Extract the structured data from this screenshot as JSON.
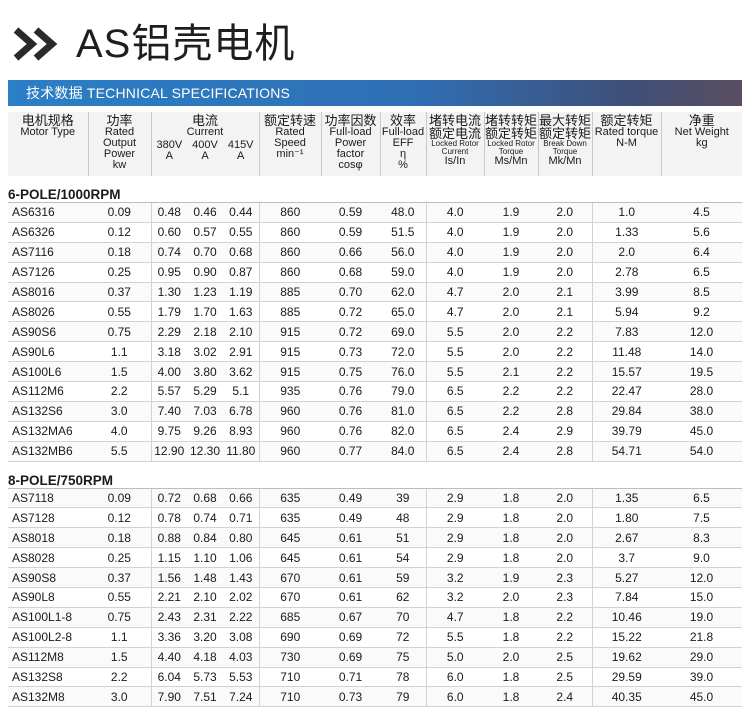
{
  "header": {
    "title": "AS铝壳电机",
    "banner": "技术数据 TECHNICAL SPECIFICATIONS"
  },
  "columns": {
    "model": {
      "cn": "电机规格",
      "en": "Motor Type"
    },
    "output": {
      "cn": "功率",
      "en": "Rated Output Power",
      "unit": "kw"
    },
    "current": {
      "cn": "电流",
      "en": "Current",
      "v380": "380V",
      "v400": "400V",
      "v415": "415V",
      "unit": "A"
    },
    "speed": {
      "cn": "额定转速",
      "en": "Rated Speed",
      "unit": "min⁻¹"
    },
    "pf": {
      "cn": "功率因数",
      "en": "Full-load Power factor",
      "unit": "cosφ"
    },
    "eff": {
      "cn": "效率",
      "en": "Full-load EFF",
      "sym": "η",
      "unit": "%"
    },
    "lcurrent": {
      "cn": "堵转电流 额定电流",
      "en": "Locked Rotor Current",
      "unit": "Is/In"
    },
    "ltorque": {
      "cn": "堵转转矩 额定转矩",
      "en": "Locked Rotor Torque",
      "unit": "Ms/Mn"
    },
    "btorque": {
      "cn": "最大转矩 额定转矩",
      "en": "Break Down Torque",
      "unit": "Mk/Mn"
    },
    "rtorque": {
      "cn": "额定转矩",
      "en": "Rated torque",
      "unit": "N-M"
    },
    "weight": {
      "cn": "净重",
      "en": "Net Weight",
      "unit": "kg"
    }
  },
  "sections": [
    {
      "title": "6-POLE/1000RPM",
      "rows": [
        [
          "AS6316",
          "0.09",
          "0.48",
          "0.46",
          "0.44",
          "860",
          "0.59",
          "48.0",
          "4.0",
          "1.9",
          "2.0",
          "1.0",
          "4.5"
        ],
        [
          "AS6326",
          "0.12",
          "0.60",
          "0.57",
          "0.55",
          "860",
          "0.59",
          "51.5",
          "4.0",
          "1.9",
          "2.0",
          "1.33",
          "5.6"
        ],
        [
          "AS7116",
          "0.18",
          "0.74",
          "0.70",
          "0.68",
          "860",
          "0.66",
          "56.0",
          "4.0",
          "1.9",
          "2.0",
          "2.0",
          "6.4"
        ],
        [
          "AS7126",
          "0.25",
          "0.95",
          "0.90",
          "0.87",
          "860",
          "0.68",
          "59.0",
          "4.0",
          "1.9",
          "2.0",
          "2.78",
          "6.5"
        ],
        [
          "AS8016",
          "0.37",
          "1.30",
          "1.23",
          "1.19",
          "885",
          "0.70",
          "62.0",
          "4.7",
          "2.0",
          "2.1",
          "3.99",
          "8.5"
        ],
        [
          "AS8026",
          "0.55",
          "1.79",
          "1.70",
          "1.63",
          "885",
          "0.72",
          "65.0",
          "4.7",
          "2.0",
          "2.1",
          "5.94",
          "9.2"
        ],
        [
          "AS90S6",
          "0.75",
          "2.29",
          "2.18",
          "2.10",
          "915",
          "0.72",
          "69.0",
          "5.5",
          "2.0",
          "2.2",
          "7.83",
          "12.0"
        ],
        [
          "AS90L6",
          "1.1",
          "3.18",
          "3.02",
          "2.91",
          "915",
          "0.73",
          "72.0",
          "5.5",
          "2.0",
          "2.2",
          "11.48",
          "14.0"
        ],
        [
          "AS100L6",
          "1.5",
          "4.00",
          "3.80",
          "3.62",
          "915",
          "0.75",
          "76.0",
          "5.5",
          "2.1",
          "2.2",
          "15.57",
          "19.5"
        ],
        [
          "AS112M6",
          "2.2",
          "5.57",
          "5.29",
          "5.1",
          "935",
          "0.76",
          "79.0",
          "6.5",
          "2.2",
          "2.2",
          "22.47",
          "28.0"
        ],
        [
          "AS132S6",
          "3.0",
          "7.40",
          "7.03",
          "6.78",
          "960",
          "0.76",
          "81.0",
          "6.5",
          "2.2",
          "2.8",
          "29.84",
          "38.0"
        ],
        [
          "AS132MA6",
          "4.0",
          "9.75",
          "9.26",
          "8.93",
          "960",
          "0.76",
          "82.0",
          "6.5",
          "2.4",
          "2.9",
          "39.79",
          "45.0"
        ],
        [
          "AS132MB6",
          "5.5",
          "12.90",
          "12.30",
          "11.80",
          "960",
          "0.77",
          "84.0",
          "6.5",
          "2.4",
          "2.8",
          "54.71",
          "54.0"
        ]
      ]
    },
    {
      "title": "8-POLE/750RPM",
      "rows": [
        [
          "AS7118",
          "0.09",
          "0.72",
          "0.68",
          "0.66",
          "635",
          "0.49",
          "39",
          "2.9",
          "1.8",
          "2.0",
          "1.35",
          "6.5"
        ],
        [
          "AS7128",
          "0.12",
          "0.78",
          "0.74",
          "0.71",
          "635",
          "0.49",
          "48",
          "2.9",
          "1.8",
          "2.0",
          "1.80",
          "7.5"
        ],
        [
          "AS8018",
          "0.18",
          "0.88",
          "0.84",
          "0.80",
          "645",
          "0.61",
          "51",
          "2.9",
          "1.8",
          "2.0",
          "2.67",
          "8.3"
        ],
        [
          "AS8028",
          "0.25",
          "1.15",
          "1.10",
          "1.06",
          "645",
          "0.61",
          "54",
          "2.9",
          "1.8",
          "2.0",
          "3.7",
          "9.0"
        ],
        [
          "AS90S8",
          "0.37",
          "1.56",
          "1.48",
          "1.43",
          "670",
          "0.61",
          "59",
          "3.2",
          "1.9",
          "2.3",
          "5.27",
          "12.0"
        ],
        [
          "AS90L8",
          "0.55",
          "2.21",
          "2.10",
          "2.02",
          "670",
          "0.61",
          "62",
          "3.2",
          "2.0",
          "2.3",
          "7.84",
          "15.0"
        ],
        [
          "AS100L1-8",
          "0.75",
          "2.43",
          "2.31",
          "2.22",
          "685",
          "0.67",
          "70",
          "4.7",
          "1.8",
          "2.2",
          "10.46",
          "19.0"
        ],
        [
          "AS100L2-8",
          "1.1",
          "3.36",
          "3.20",
          "3.08",
          "690",
          "0.69",
          "72",
          "5.5",
          "1.8",
          "2.2",
          "15.22",
          "21.8"
        ],
        [
          "AS112M8",
          "1.5",
          "4.40",
          "4.18",
          "4.03",
          "730",
          "0.69",
          "75",
          "5.0",
          "2.0",
          "2.5",
          "19.62",
          "29.0"
        ],
        [
          "AS132S8",
          "2.2",
          "6.04",
          "5.73",
          "5.53",
          "710",
          "0.71",
          "78",
          "6.0",
          "1.8",
          "2.5",
          "29.59",
          "39.0"
        ],
        [
          "AS132M8",
          "3.0",
          "7.90",
          "7.51",
          "7.24",
          "710",
          "0.73",
          "79",
          "6.0",
          "1.8",
          "2.4",
          "40.35",
          "45.0"
        ]
      ]
    }
  ]
}
